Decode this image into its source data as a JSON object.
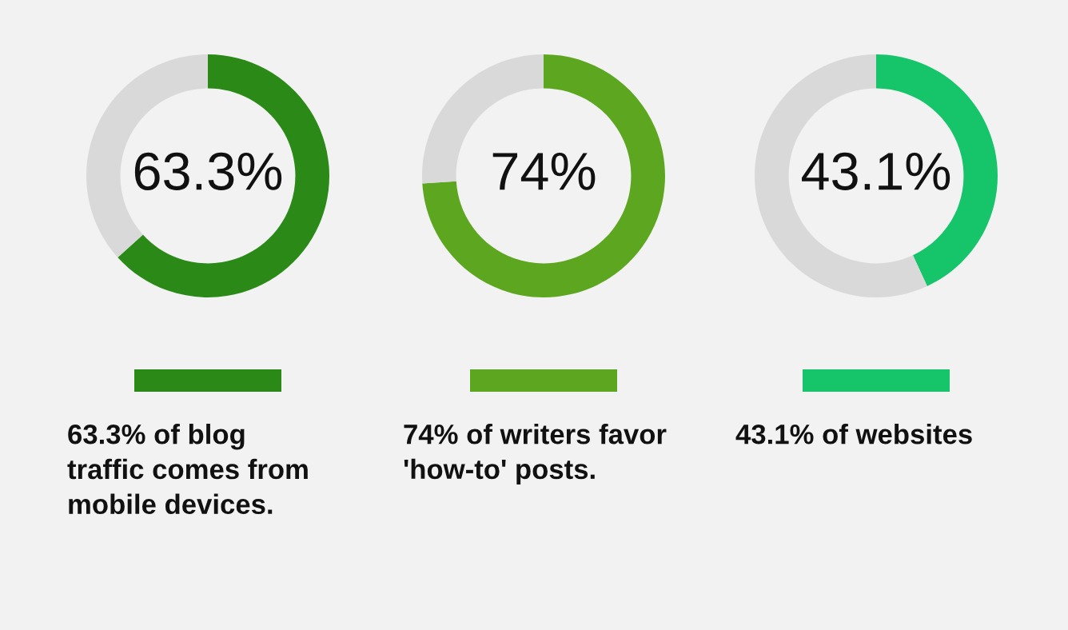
{
  "chart_data": [
    {
      "type": "donut",
      "categories": [
        null,
        null
      ],
      "values": [
        63.3,
        36.7
      ],
      "colors": [
        "#2b8a17",
        "#d9d9d9"
      ],
      "value_labels": [
        "63.3%",
        null
      ],
      "annotations": [
        "63.3% of blog traffic comes from mobile devices."
      ]
    },
    {
      "type": "donut",
      "categories": [
        null,
        null
      ],
      "values": [
        74,
        26
      ],
      "colors": [
        "#5ca71f",
        "#d9d9d9"
      ],
      "value_labels": [
        "74%",
        null
      ],
      "annotations": [
        "74% of writers favor 'how-to' posts."
      ]
    },
    {
      "type": "donut",
      "categories": [
        null,
        null
      ],
      "values": [
        43.1,
        56.9
      ],
      "colors": [
        "#16c46a",
        "#d9d9d9"
      ],
      "value_labels": [
        "43.1%",
        null
      ],
      "annotations": [
        "43.1% of websites"
      ]
    }
  ]
}
